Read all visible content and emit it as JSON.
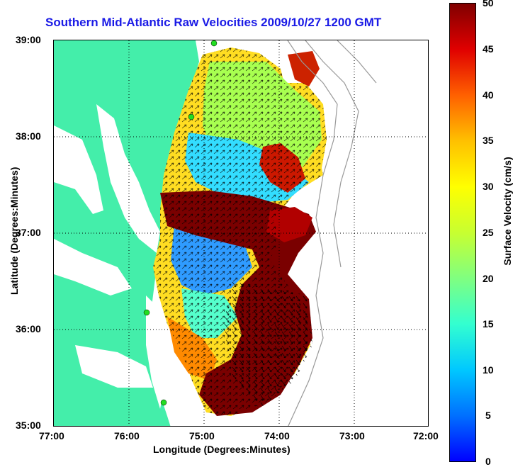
{
  "title": "Southern Mid-Atlantic Raw Velocities 2009/10/27 1200 GMT",
  "axes": {
    "ylabel": "Latitude (Degrees:Minutes)",
    "xlabel": "Longitude (Degrees:Minutes)",
    "yticks": [
      "39:00",
      "38:00",
      "37:00",
      "36:00",
      "35:00"
    ],
    "xticks": [
      "77:00",
      "76:00",
      "75:00",
      "74:00",
      "73:00",
      "72:00"
    ]
  },
  "colorbar": {
    "label": "Surface Velocity (cm/s)",
    "ticks": [
      "50",
      "45",
      "40",
      "35",
      "30",
      "25",
      "20",
      "15",
      "10",
      "5",
      "0"
    ]
  },
  "chart_data": {
    "type": "heatmap",
    "title": "Southern Mid-Atlantic Raw Velocities 2009/10/27 1200 GMT",
    "xlabel": "Longitude (Degrees:Minutes)",
    "ylabel": "Latitude (Degrees:Minutes)",
    "xlim": [
      -77,
      -72
    ],
    "ylim": [
      35,
      39
    ],
    "clim": [
      0,
      50
    ],
    "colorbar_label": "Surface Velocity (cm/s)",
    "colors": {
      "land": "#44eeaa",
      "deep": "#7a0000"
    }
  }
}
